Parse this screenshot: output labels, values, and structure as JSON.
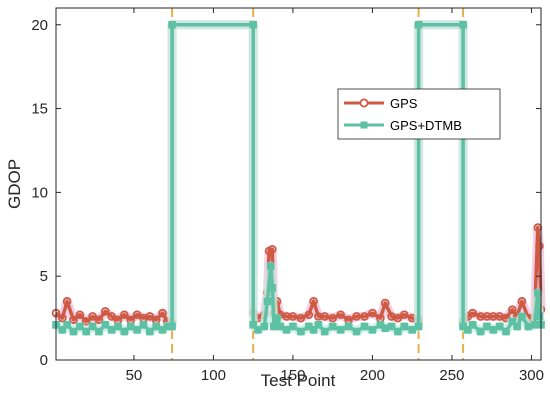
{
  "chart_data": {
    "type": "line",
    "title": "",
    "xlabel": "Test Point",
    "ylabel": "GDOP",
    "xlim": [
      1,
      306
    ],
    "ylim": [
      0,
      21
    ],
    "xticks": [
      50,
      100,
      150,
      200,
      250,
      300
    ],
    "yticks": [
      0,
      5,
      10,
      15,
      20
    ],
    "grid": false,
    "legend_position": "upper-right",
    "outage_lines": [
      74,
      125,
      229,
      257
    ],
    "series": [
      {
        "name": "GPS",
        "color": "#cf5a44",
        "marker": "circle",
        "values": [
          [
            1,
            2.8
          ],
          [
            5,
            2.5
          ],
          [
            8,
            3.5
          ],
          [
            12,
            2.4
          ],
          [
            16,
            2.7
          ],
          [
            20,
            2.3
          ],
          [
            24,
            2.6
          ],
          [
            28,
            2.4
          ],
          [
            32,
            2.9
          ],
          [
            36,
            2.6
          ],
          [
            40,
            2.4
          ],
          [
            44,
            2.7
          ],
          [
            48,
            2.4
          ],
          [
            52,
            2.7
          ],
          [
            56,
            2.5
          ],
          [
            60,
            2.6
          ],
          [
            64,
            2.4
          ],
          [
            68,
            2.8
          ],
          [
            71,
            2.3
          ],
          [
            74,
            2.2
          ],
          [
            74,
            20
          ],
          [
            125,
            20
          ],
          [
            125,
            2.8
          ],
          [
            128,
            2.5
          ],
          [
            132,
            2.7
          ],
          [
            134,
            4.0
          ],
          [
            135,
            6.5
          ],
          [
            137,
            6.6
          ],
          [
            138,
            2.8
          ],
          [
            140,
            3.5
          ],
          [
            142,
            2.7
          ],
          [
            146,
            2.6
          ],
          [
            150,
            2.6
          ],
          [
            155,
            2.5
          ],
          [
            160,
            2.7
          ],
          [
            163,
            3.5
          ],
          [
            166,
            2.6
          ],
          [
            170,
            2.6
          ],
          [
            175,
            2.5
          ],
          [
            180,
            2.7
          ],
          [
            185,
            2.4
          ],
          [
            190,
            2.6
          ],
          [
            195,
            2.6
          ],
          [
            200,
            2.8
          ],
          [
            205,
            2.5
          ],
          [
            208,
            3.4
          ],
          [
            212,
            2.6
          ],
          [
            216,
            2.5
          ],
          [
            220,
            2.7
          ],
          [
            225,
            2.5
          ],
          [
            229,
            2.4
          ],
          [
            229,
            20
          ],
          [
            257,
            20
          ],
          [
            257,
            2.3
          ],
          [
            260,
            2.6
          ],
          [
            263,
            2.8
          ],
          [
            268,
            2.6
          ],
          [
            272,
            2.6
          ],
          [
            276,
            2.6
          ],
          [
            280,
            2.6
          ],
          [
            284,
            2.5
          ],
          [
            288,
            3.0
          ],
          [
            291,
            2.6
          ],
          [
            294,
            3.5
          ],
          [
            298,
            2.5
          ],
          [
            302,
            2.6
          ],
          [
            304,
            7.9
          ],
          [
            305,
            6.8
          ],
          [
            306,
            3.0
          ]
        ]
      },
      {
        "name": "GPS+DTMB",
        "color": "#5fc1a4",
        "marker": "square",
        "values": [
          [
            1,
            2.1
          ],
          [
            5,
            1.8
          ],
          [
            8,
            2.1
          ],
          [
            12,
            1.7
          ],
          [
            16,
            2.0
          ],
          [
            20,
            1.7
          ],
          [
            24,
            2.0
          ],
          [
            28,
            1.7
          ],
          [
            32,
            2.1
          ],
          [
            36,
            1.8
          ],
          [
            40,
            2.0
          ],
          [
            44,
            1.7
          ],
          [
            48,
            2.0
          ],
          [
            52,
            1.8
          ],
          [
            56,
            2.1
          ],
          [
            60,
            1.7
          ],
          [
            64,
            2.0
          ],
          [
            68,
            1.8
          ],
          [
            71,
            2.0
          ],
          [
            74,
            2.0
          ],
          [
            74,
            20
          ],
          [
            125,
            20
          ],
          [
            125,
            2.1
          ],
          [
            128,
            1.8
          ],
          [
            132,
            2.0
          ],
          [
            134,
            3.5
          ],
          [
            136,
            5.6
          ],
          [
            137,
            4.3
          ],
          [
            138,
            2.0
          ],
          [
            140,
            2.5
          ],
          [
            142,
            2.0
          ],
          [
            146,
            1.8
          ],
          [
            150,
            2.0
          ],
          [
            155,
            1.7
          ],
          [
            160,
            2.0
          ],
          [
            163,
            1.8
          ],
          [
            166,
            2.1
          ],
          [
            170,
            1.7
          ],
          [
            175,
            2.0
          ],
          [
            180,
            1.8
          ],
          [
            185,
            2.0
          ],
          [
            190,
            1.7
          ],
          [
            195,
            2.0
          ],
          [
            200,
            1.8
          ],
          [
            205,
            2.1
          ],
          [
            208,
            1.9
          ],
          [
            212,
            2.0
          ],
          [
            216,
            1.7
          ],
          [
            220,
            2.0
          ],
          [
            225,
            1.8
          ],
          [
            229,
            2.0
          ],
          [
            229,
            20
          ],
          [
            257,
            20
          ],
          [
            257,
            2.0
          ],
          [
            260,
            1.8
          ],
          [
            263,
            2.1
          ],
          [
            268,
            1.7
          ],
          [
            272,
            2.0
          ],
          [
            276,
            1.8
          ],
          [
            280,
            2.0
          ],
          [
            284,
            1.7
          ],
          [
            288,
            2.3
          ],
          [
            291,
            2.0
          ],
          [
            294,
            2.6
          ],
          [
            298,
            2.0
          ],
          [
            302,
            2.1
          ],
          [
            304,
            4.0
          ],
          [
            305,
            2.6
          ],
          [
            306,
            2.1
          ]
        ]
      }
    ]
  }
}
